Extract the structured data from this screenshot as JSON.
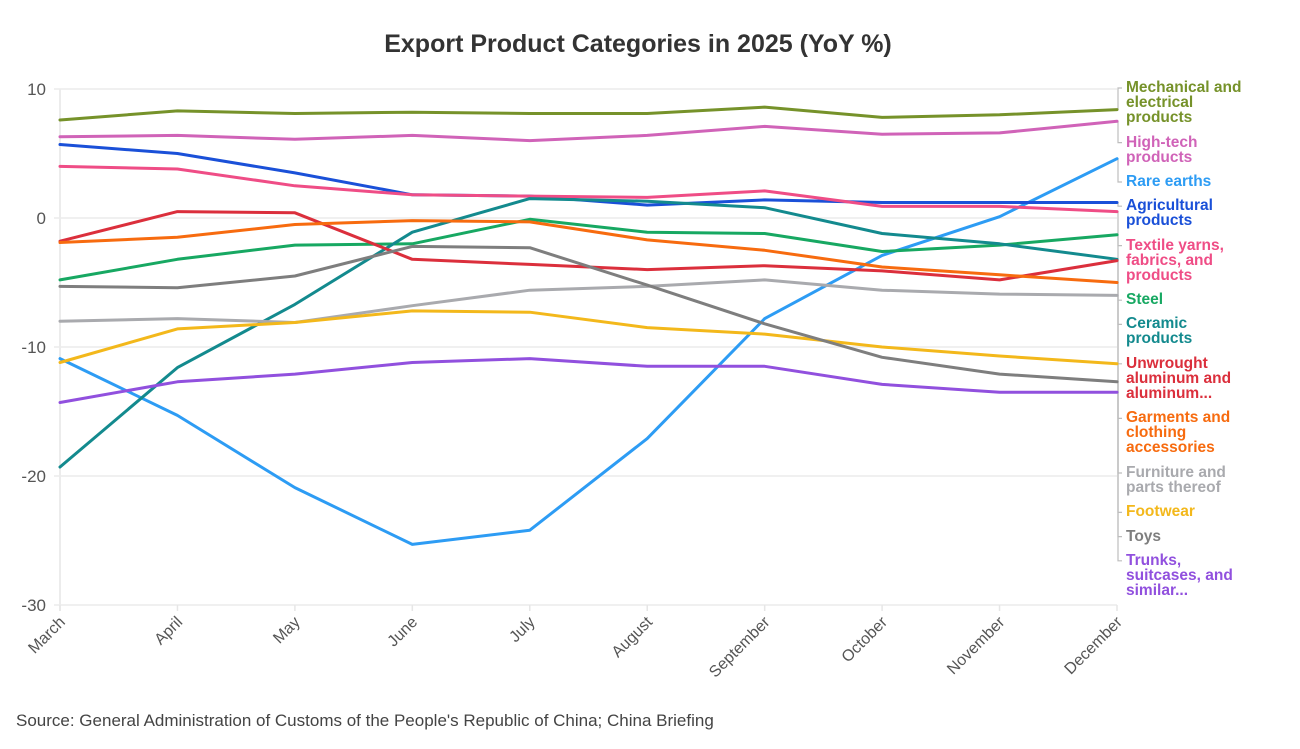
{
  "chart_data": {
    "type": "line",
    "title": "Export Product Categories in 2025 (YoY %)",
    "xlabel": "",
    "ylabel": "",
    "ylim": [
      -30,
      10
    ],
    "yticks": [
      "10",
      "0",
      "-10",
      "-20",
      "-30"
    ],
    "ytick_values": [
      10,
      0,
      -10,
      -20,
      -30
    ],
    "grid": true,
    "legend_placement": "right",
    "categories": [
      "March",
      "April",
      "May",
      "June",
      "July",
      "August",
      "September",
      "October",
      "November",
      "December"
    ],
    "series": [
      {
        "name": "Mechanical and electrical products",
        "label_lines": [
          "Mechanical and",
          "electrical",
          "products"
        ],
        "color": "#76922a",
        "values": [
          7.6,
          8.3,
          8.1,
          8.2,
          8.1,
          8.1,
          8.6,
          7.8,
          8.0,
          8.4
        ]
      },
      {
        "name": "High-tech products",
        "label_lines": [
          "High-tech",
          "products"
        ],
        "color": "#d063b8",
        "values": [
          6.3,
          6.4,
          6.1,
          6.4,
          6.0,
          6.4,
          7.1,
          6.5,
          6.6,
          7.5
        ]
      },
      {
        "name": "Rare earths",
        "label_lines": [
          "Rare earths"
        ],
        "color": "#2d9cf4",
        "values": [
          -10.9,
          -15.3,
          -20.9,
          -25.3,
          -24.2,
          -17.1,
          -7.8,
          -2.9,
          0.1,
          4.6
        ]
      },
      {
        "name": "Agricultural products",
        "label_lines": [
          "Agricultural",
          "products"
        ],
        "color": "#1a50d8",
        "values": [
          5.7,
          5.0,
          3.5,
          1.8,
          1.7,
          1.0,
          1.4,
          1.2,
          1.2,
          1.2
        ]
      },
      {
        "name": "Textile yarns, fabrics, and products",
        "label_lines": [
          "Textile yarns,",
          "fabrics, and",
          "products"
        ],
        "color": "#ef4d86",
        "values": [
          4.0,
          3.8,
          2.5,
          1.8,
          1.7,
          1.6,
          2.1,
          0.9,
          0.9,
          0.5
        ]
      },
      {
        "name": "Steel",
        "label_lines": [
          "Steel"
        ],
        "color": "#17a862",
        "values": [
          -4.8,
          -3.2,
          -2.1,
          -2.0,
          -0.1,
          -1.1,
          -1.2,
          -2.6,
          -2.1,
          -1.3
        ]
      },
      {
        "name": "Ceramic products",
        "label_lines": [
          "Ceramic",
          "products"
        ],
        "color": "#138a8e",
        "values": [
          -19.3,
          -11.6,
          -6.7,
          -1.1,
          1.5,
          1.3,
          0.8,
          -1.2,
          -2.0,
          -3.2
        ]
      },
      {
        "name": "Unwrought aluminum and aluminum...",
        "label_lines": [
          "Unwrought",
          "aluminum and",
          "aluminum..."
        ],
        "color": "#db2f3c",
        "values": [
          -1.8,
          0.5,
          0.4,
          -3.2,
          -3.6,
          -4.0,
          -3.7,
          -4.1,
          -4.8,
          -3.3
        ]
      },
      {
        "name": "Garments and clothing accessories",
        "label_lines": [
          "Garments and",
          "clothing",
          "accessories"
        ],
        "color": "#f76b0f",
        "values": [
          -1.9,
          -1.5,
          -0.5,
          -0.2,
          -0.3,
          -1.7,
          -2.5,
          -3.8,
          -4.4,
          -5.0
        ]
      },
      {
        "name": "Furniture and parts thereof",
        "label_lines": [
          "Furniture and",
          "parts thereof"
        ],
        "color": "#a9aaae",
        "values": [
          -8.0,
          -7.8,
          -8.1,
          -6.8,
          -5.6,
          -5.3,
          -4.8,
          -5.6,
          -5.9,
          -6.0
        ]
      },
      {
        "name": "Footwear",
        "label_lines": [
          "Footwear"
        ],
        "color": "#f3b81b",
        "values": [
          -11.2,
          -8.6,
          -8.1,
          -7.2,
          -7.3,
          -8.5,
          -9.0,
          -10.0,
          -10.7,
          -11.3
        ]
      },
      {
        "name": "Toys",
        "label_lines": [
          "Toys"
        ],
        "color": "#7e7e7e",
        "values": [
          -5.3,
          -5.4,
          -4.5,
          -2.2,
          -2.3,
          -5.2,
          -8.2,
          -10.8,
          -12.1,
          -12.7
        ]
      },
      {
        "name": "Trunks, suitcases, and similar...",
        "label_lines": [
          "Trunks,",
          "suitcases, and",
          "similar..."
        ],
        "color": "#9150de",
        "values": [
          -14.3,
          -12.7,
          -12.1,
          -11.2,
          -10.9,
          -11.5,
          -11.5,
          -12.9,
          -13.5,
          -13.5
        ]
      }
    ]
  },
  "source": "Source: General Administration of Customs of the People's Republic of China; China Briefing"
}
